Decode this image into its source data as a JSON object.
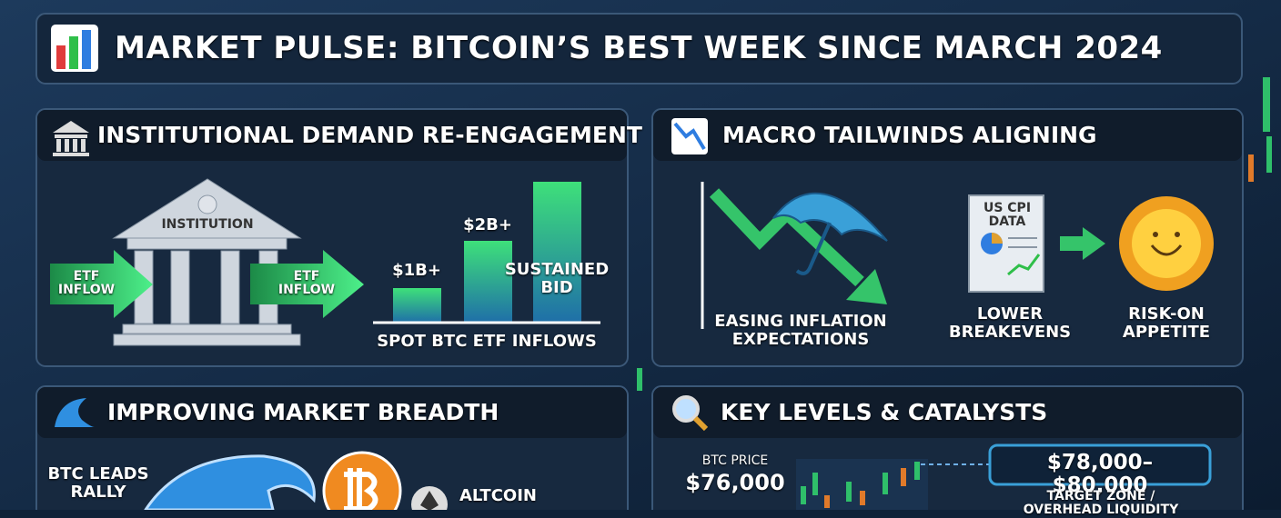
{
  "header": {
    "title": "MARKET PULSE: BITCOIN’S BEST WEEK SINCE MARCH 2024"
  },
  "panels": [
    {
      "title": "INSTITUTIONAL DEMAND RE-ENGAGEMENT",
      "building_label": "INSTITUTION",
      "flow_labels": [
        "ETF INFLOW",
        "ETF INFLOW"
      ],
      "bar_labels": [
        "$1B+",
        "$2B+",
        "SUSTAINED BID"
      ],
      "caption": "SPOT BTC ETF INFLOWS"
    },
    {
      "title": "MACRO TAILWINDS ALIGNING",
      "items": [
        {
          "label": "EASING INFLATION EXPECTATIONS"
        },
        {
          "doc_label": "US CPI DATA",
          "label": "LOWER BREAKEVENS"
        },
        {
          "label": "RISK-ON APPETITE"
        }
      ]
    },
    {
      "title": "IMPROVING MARKET BREADTH",
      "leader_label": "BTC LEADS RALLY",
      "follower_label": "ALTCOIN"
    },
    {
      "title": "KEY LEVELS & CATALYSTS",
      "price_label": "BTC PRICE",
      "price": "$76,000",
      "target": "$78,000–$80,000",
      "target_caption": "TARGET ZONE / OVERHEAD LIQUIDITY"
    }
  ]
}
